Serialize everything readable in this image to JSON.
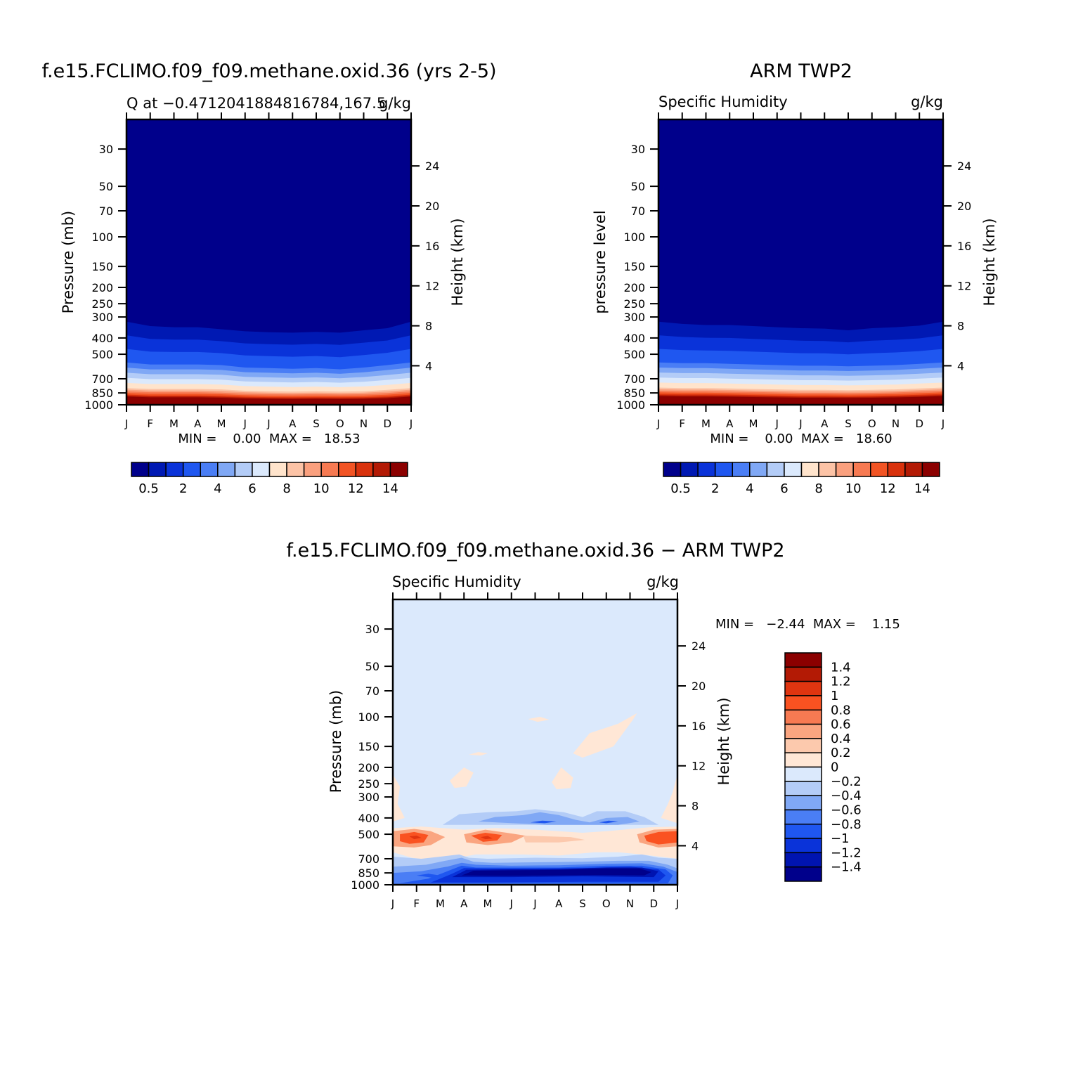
{
  "colors": {
    "abs_scale": [
      "#00008b",
      "#0019b3",
      "#0a33d9",
      "#1f57f0",
      "#4a7ef5",
      "#80a8f5",
      "#b3ccf7",
      "#dbe9fc",
      "#ffe4cc",
      "#fcc3a6",
      "#faa07e",
      "#f77a52",
      "#f25424",
      "#d9320d",
      "#b31a05",
      "#8b0000"
    ],
    "diff_scale": [
      "#00008b",
      "#0014b0",
      "#0a33d9",
      "#1f57f0",
      "#4a7ef5",
      "#80a8f5",
      "#b3ccf7",
      "#dbe9fc",
      "#ffe7d6",
      "#fcc9ad",
      "#faa580",
      "#f77a52",
      "#fa5221",
      "#e03510",
      "#b31a05",
      "#8b0000"
    ]
  },
  "chart_data": [
    {
      "type": "heatmap",
      "title": "f.e15.FCLIMO.f09_f09.methane.oxid.36 (yrs 2-5)",
      "subtitle_left": "Q at −0.4712041884816784,167.5",
      "subtitle_right": "g/kg",
      "ylabel": "Pressure (mb)",
      "ylabel_right": "Height (km)",
      "x_ticklabels": [
        "J",
        "F",
        "M",
        "A",
        "M",
        "J",
        "J",
        "A",
        "S",
        "O",
        "N",
        "D",
        "J"
      ],
      "y_ticks": [
        30,
        50,
        70,
        100,
        150,
        200,
        250,
        300,
        400,
        500,
        700,
        850,
        1000
      ],
      "y_ticklabels": [
        "30",
        "50",
        "70",
        "100",
        "150",
        "200",
        "250",
        "300",
        "400",
        "500",
        "700",
        "850",
        "1000"
      ],
      "height_ticks": [
        24,
        20,
        16,
        12,
        8,
        4
      ],
      "height_ticklabels": [
        "24",
        "20",
        "16",
        "12",
        "8",
        "4"
      ],
      "ylim": [
        20,
        1000
      ],
      "stats": "MIN =    0.00  MAX =   18.53",
      "colorbar_ticklabels": [
        "0.5",
        "2",
        "4",
        "6",
        "8",
        "10",
        "12",
        "14"
      ],
      "values": {
        "months": [
          0,
          1,
          2,
          3,
          4,
          5,
          6,
          7,
          8,
          9,
          10,
          11,
          12
        ],
        "p_1_5_g_kg": [
          320,
          340,
          345,
          345,
          355,
          365,
          370,
          372,
          368,
          372,
          360,
          350,
          320
        ],
        "p_4_g_kg": [
          560,
          575,
          575,
          575,
          580,
          600,
          605,
          610,
          605,
          615,
          600,
          580,
          560
        ],
        "p_8_g_kg": [
          795,
          805,
          805,
          805,
          810,
          825,
          830,
          835,
          830,
          835,
          830,
          815,
          795
        ],
        "p_12_g_kg": [
          870,
          880,
          880,
          880,
          885,
          895,
          900,
          902,
          900,
          902,
          900,
          890,
          870
        ],
        "p_14_g_kg": [
          905,
          915,
          915,
          915,
          920,
          930,
          932,
          935,
          932,
          935,
          932,
          925,
          905
        ]
      }
    },
    {
      "type": "heatmap",
      "title": "ARM TWP2",
      "subtitle_left": "Specific Humidity",
      "subtitle_right": "g/kg",
      "ylabel": "pressure level",
      "ylabel_right": "Height (km)",
      "x_ticklabels": [
        "J",
        "F",
        "M",
        "A",
        "M",
        "J",
        "J",
        "A",
        "S",
        "O",
        "N",
        "D",
        "J"
      ],
      "y_ticks": [
        30,
        50,
        70,
        100,
        150,
        200,
        250,
        300,
        400,
        500,
        700,
        850,
        1000
      ],
      "y_ticklabels": [
        "30",
        "50",
        "70",
        "100",
        "150",
        "200",
        "250",
        "300",
        "400",
        "500",
        "700",
        "850",
        "1000"
      ],
      "height_ticks": [
        24,
        20,
        16,
        12,
        8,
        4
      ],
      "height_ticklabels": [
        "24",
        "20",
        "16",
        "12",
        "8",
        "4"
      ],
      "ylim": [
        20,
        1000
      ],
      "stats": "MIN =    0.00  MAX =   18.60",
      "colorbar_ticklabels": [
        "0.5",
        "2",
        "4",
        "6",
        "8",
        "10",
        "12",
        "14"
      ],
      "values": {
        "months": [
          0,
          1,
          2,
          3,
          4,
          5,
          6,
          7,
          8,
          9,
          10,
          11,
          12
        ],
        "p_1_5_g_kg": [
          320,
          330,
          335,
          335,
          340,
          345,
          350,
          352,
          360,
          350,
          345,
          338,
          320
        ],
        "p_4_g_kg": [
          560,
          565,
          565,
          570,
          575,
          580,
          585,
          585,
          590,
          585,
          580,
          570,
          560
        ],
        "p_8_g_kg": [
          790,
          795,
          795,
          800,
          805,
          810,
          815,
          815,
          818,
          815,
          810,
          800,
          790
        ],
        "p_12_g_kg": [
          862,
          866,
          866,
          870,
          875,
          880,
          885,
          885,
          888,
          885,
          880,
          872,
          862
        ],
        "p_14_g_kg": [
          900,
          905,
          905,
          908,
          912,
          916,
          920,
          920,
          922,
          920,
          916,
          910,
          900
        ]
      }
    },
    {
      "type": "heatmap",
      "title": "f.e15.FCLIMO.f09_f09.methane.oxid.36 − ARM TWP2",
      "subtitle_left": "Specific Humidity",
      "subtitle_right": "g/kg",
      "ylabel": "Pressure (mb)",
      "ylabel_right": "Height (km)",
      "x_ticklabels": [
        "J",
        "F",
        "M",
        "A",
        "M",
        "J",
        "J",
        "A",
        "S",
        "O",
        "N",
        "D",
        "J"
      ],
      "y_ticks": [
        30,
        50,
        70,
        100,
        150,
        200,
        250,
        300,
        400,
        500,
        700,
        850,
        1000
      ],
      "y_ticklabels": [
        "30",
        "50",
        "70",
        "100",
        "150",
        "200",
        "250",
        "300",
        "400",
        "500",
        "700",
        "850",
        "1000"
      ],
      "height_ticks": [
        24,
        20,
        16,
        12,
        8,
        4
      ],
      "height_ticklabels": [
        "24",
        "20",
        "16",
        "12",
        "8",
        "4"
      ],
      "ylim": [
        20,
        1000
      ],
      "stats": "MIN =   −2.44  MAX =    1.15",
      "colorbar_ticklabels": [
        "1.4",
        "1.2",
        "1",
        "0.8",
        "0.6",
        "0.4",
        "0.2",
        "0",
        "−0.2",
        "−0.4",
        "−0.6",
        "−0.8",
        "−1",
        "−1.2",
        "−1.4"
      ],
      "values": {
        "background_g_kg": -0.1,
        "positive_features": [
          {
            "month": 0.9,
            "p": 520,
            "q": 0.8
          },
          {
            "month": 3.9,
            "p": 520,
            "q": 0.8
          },
          {
            "month": 11.2,
            "p": 520,
            "q": 0.7
          },
          {
            "month": 9.6,
            "p": 130,
            "q": 0.1
          },
          {
            "month": 6.1,
            "p": 230,
            "q": 0.1
          }
        ],
        "negative_features": [
          {
            "month": 6.0,
            "p": 420,
            "q": -0.5
          },
          {
            "month": 8.5,
            "p": 420,
            "q": -0.5
          },
          {
            "month": 6.5,
            "p": 830,
            "q": -1.5
          },
          {
            "month": 9.5,
            "p": 800,
            "q": -2.4
          }
        ]
      }
    }
  ]
}
